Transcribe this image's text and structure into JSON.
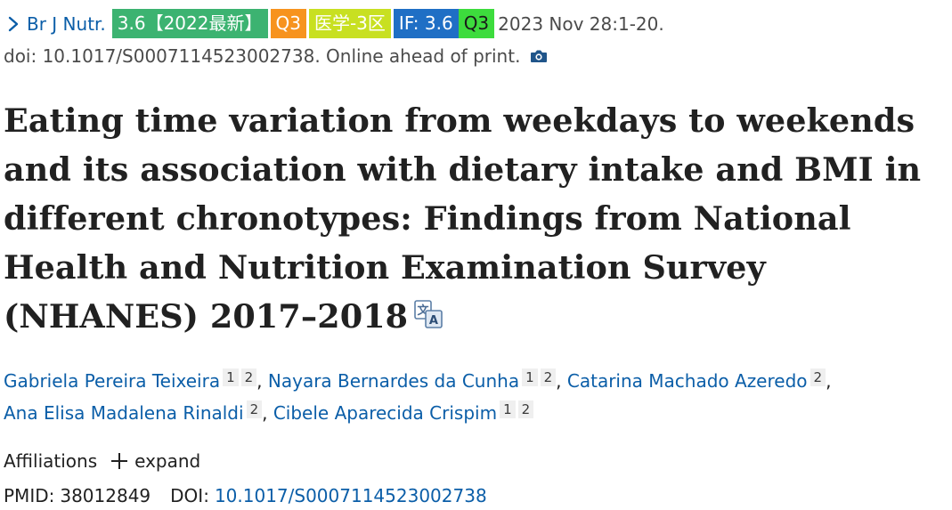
{
  "citation": {
    "journal": "Br J Nutr.",
    "badges": {
      "impact_2022": "3.6【2022最新】",
      "quartile_a": "Q3",
      "cas_zone": "医学-3区",
      "impact_factor": "IF: 3.6",
      "quartile_b": "Q3"
    },
    "date_pages": "2023 Nov 28:1-20.",
    "doi_line": "doi: 10.1017/S0007114523002738. Online ahead of print."
  },
  "article": {
    "title": "Eating time variation from weekdays to weekends and its association with dietary intake and BMI in different chronotypes: Findings from National Health and Nutrition Examination Survey (NHANES) 2017–2018"
  },
  "authors": [
    {
      "name": "Gabriela Pereira Teixeira",
      "affiliations": [
        "1",
        "2"
      ]
    },
    {
      "name": "Nayara Bernardes da Cunha",
      "affiliations": [
        "1",
        "2"
      ]
    },
    {
      "name": "Catarina Machado Azeredo",
      "affiliations": [
        "2"
      ]
    },
    {
      "name": "Ana Elisa Madalena Rinaldi",
      "affiliations": [
        "2"
      ]
    },
    {
      "name": "Cibele Aparecida Crispim",
      "affiliations": [
        "1",
        "2"
      ]
    }
  ],
  "affiliations": {
    "label": "Affiliations",
    "expand_label": "expand"
  },
  "identifiers": {
    "pmid_label": "PMID:",
    "pmid": "38012849",
    "doi_label": "DOI:",
    "doi": "10.1017/S0007114523002738"
  },
  "colors": {
    "link": "#0b5ea8",
    "badge_green": "#3cb371",
    "badge_orange": "#f7931e",
    "badge_lime": "#c8e021",
    "badge_blue": "#1f6fc5",
    "badge_bright_green": "#3ddc3d"
  },
  "icons": {
    "journal_chevron": "chevron-right-icon",
    "pdf_snapshot": "camera-icon",
    "translate": "translate-icon",
    "expand": "plus-icon"
  }
}
